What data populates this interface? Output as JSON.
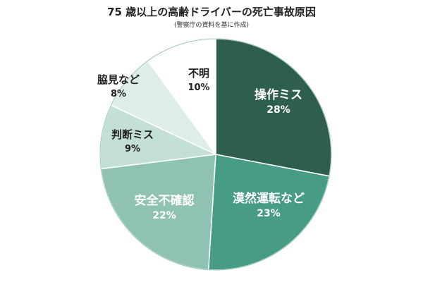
{
  "chart_data": {
    "type": "pie",
    "title": "75 歳以上の高齢ドライバーの死亡事故原因",
    "subtitle": "(警察庁の資料を基に作成)",
    "start_angle_deg": 0,
    "direction": "clockwise",
    "slices": [
      {
        "label": "操作ミス",
        "value": 28,
        "value_label": "28%",
        "color": "#2e5e4e",
        "text_color": "#ffffff"
      },
      {
        "label": "漠然運転など",
        "value": 23,
        "value_label": "23%",
        "color": "#479c85",
        "text_color": "#ffffff"
      },
      {
        "label": "安全不確認",
        "value": 22,
        "value_label": "22%",
        "color": "#8fc2b3",
        "text_color": "#ffffff"
      },
      {
        "label": "判断ミス",
        "value": 9,
        "value_label": "9%",
        "color": "#c4e0d6",
        "text_color": "#222222"
      },
      {
        "label": "脇見など",
        "value": 8,
        "value_label": "8%",
        "color": "#ddeee7",
        "text_color": "#222222"
      },
      {
        "label": "不明",
        "value": 10,
        "value_label": "10%",
        "color": "#ffffff",
        "text_color": "#222222"
      }
    ]
  }
}
